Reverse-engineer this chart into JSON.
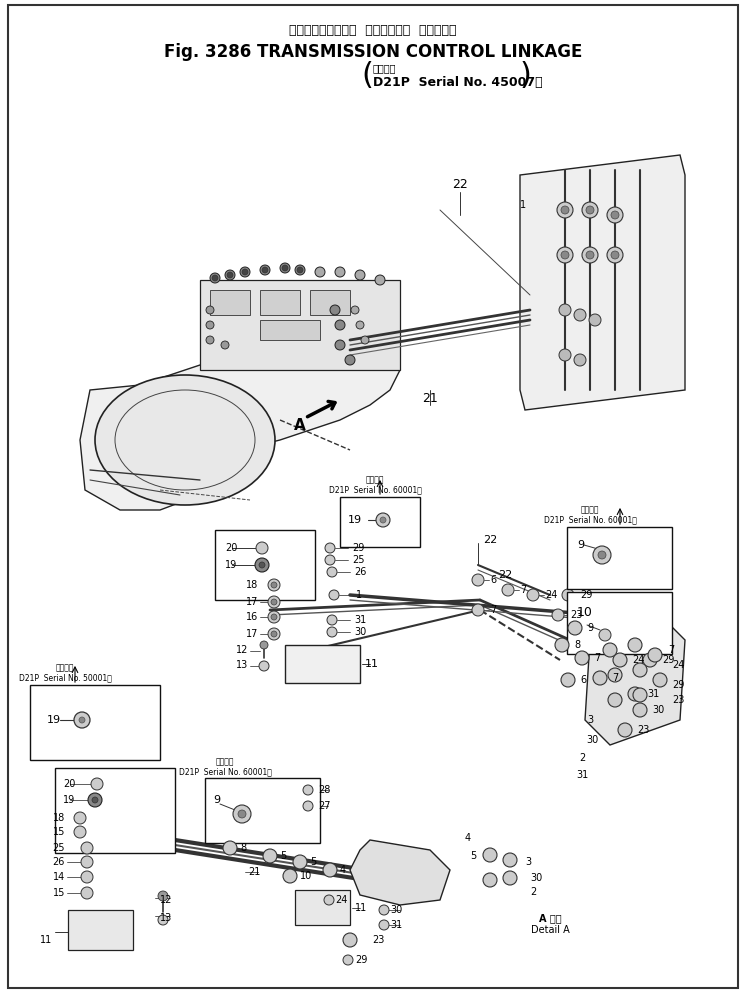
{
  "title_japanese": "トランスミッション  コントロール  リンケージ",
  "title_english": "Fig. 3286 TRANSMISSION CONTROL LINKAGE",
  "subtitle_japanese": "適用号機",
  "subtitle_model": "D21P  Serial No. 45007～",
  "bg_color": "#ffffff",
  "figsize": [
    7.46,
    9.93
  ],
  "dpi": 100,
  "detail_a_jp": "A 詳細",
  "detail_a_en": "Detail A",
  "serial_jp": "適用号機",
  "serial_60001": "D21P  Serial No. 60001～",
  "serial_50001": "D21P  Serial No. 50001～"
}
